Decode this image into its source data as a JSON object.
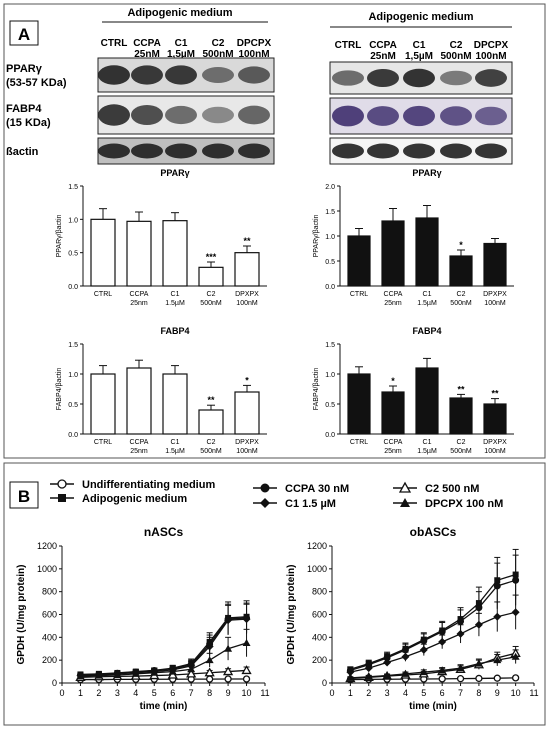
{
  "panels": {
    "a_label": "A",
    "b_label": "B"
  },
  "panel_a": {
    "blot_left": {
      "header": "Adipogenic medium",
      "lanes": [
        [
          "CTRL",
          ""
        ],
        [
          "CCPA",
          "25nM"
        ],
        [
          "C1",
          "1,5µM"
        ],
        [
          "C2",
          "500nM"
        ],
        [
          "DPCPX",
          "100nM"
        ]
      ],
      "row_labels": [
        [
          "PPARγ",
          "(53-57 KDa)"
        ],
        [
          "FABP4",
          "(15 KDa)"
        ],
        [
          "ßactin",
          ""
        ]
      ]
    },
    "blot_right": {
      "header": "Adipogenic medium",
      "lanes": [
        [
          "CTRL",
          ""
        ],
        [
          "CCPA",
          "25nM"
        ],
        [
          "C1",
          "1,5µM"
        ],
        [
          "C2",
          "500nM"
        ],
        [
          "DPCPX",
          "100nM"
        ]
      ]
    }
  },
  "chart_data": [
    {
      "id": "left-ppar",
      "type": "bar",
      "title": "PPARγ",
      "ylabel": "PPARγ/βactin",
      "ylim": [
        0,
        1.5
      ],
      "yticks": [
        "0.0",
        "0.5",
        "1.0",
        "1.5"
      ],
      "categories": [
        [
          "CTRL",
          ""
        ],
        [
          "CCPA",
          "25nm"
        ],
        [
          "C1",
          "1.5µM"
        ],
        [
          "C2",
          "500nM"
        ],
        [
          "DPXPX",
          "100nM"
        ]
      ],
      "values": [
        1.0,
        0.97,
        0.98,
        0.28,
        0.5
      ],
      "errors": [
        0.16,
        0.14,
        0.12,
        0.08,
        0.1
      ],
      "annotations": [
        "",
        "",
        "",
        "***",
        "**"
      ],
      "fill": "#ffffff"
    },
    {
      "id": "right-ppar",
      "type": "bar",
      "title": "PPARγ",
      "ylabel": "PPARγ/βactin",
      "ylim": [
        0,
        2.0
      ],
      "yticks": [
        "0.0",
        "0.5",
        "1.0",
        "1.5",
        "2.0"
      ],
      "categories": [
        [
          "CTRL",
          ""
        ],
        [
          "CCPA",
          "25nm"
        ],
        [
          "C1",
          "1.5µM"
        ],
        [
          "C2",
          "500nM"
        ],
        [
          "DPXPX",
          "100nM"
        ]
      ],
      "values": [
        1.0,
        1.3,
        1.36,
        0.6,
        0.85
      ],
      "errors": [
        0.15,
        0.25,
        0.25,
        0.12,
        0.1
      ],
      "annotations": [
        "",
        "",
        "",
        "*",
        ""
      ],
      "fill": "#111111"
    },
    {
      "id": "left-fabp4",
      "type": "bar",
      "title": "FABP4",
      "ylabel": "FABP4/βactin",
      "ylim": [
        0,
        1.5
      ],
      "yticks": [
        "0.0",
        "0.5",
        "1.0",
        "1.5"
      ],
      "categories": [
        [
          "CTRL",
          ""
        ],
        [
          "CCPA",
          "25nm"
        ],
        [
          "C1",
          "1.5µM"
        ],
        [
          "C2",
          "500nM"
        ],
        [
          "DPXPX",
          "100nM"
        ]
      ],
      "values": [
        1.0,
        1.1,
        1.0,
        0.4,
        0.7
      ],
      "errors": [
        0.14,
        0.13,
        0.14,
        0.08,
        0.11
      ],
      "annotations": [
        "",
        "",
        "",
        "**",
        "*"
      ],
      "fill": "#ffffff"
    },
    {
      "id": "right-fabp4",
      "type": "bar",
      "title": "FABP4",
      "ylabel": "FABP4/βactin",
      "ylim": [
        0,
        1.5
      ],
      "yticks": [
        "0.0",
        "0.5",
        "1.0",
        "1.5"
      ],
      "categories": [
        [
          "CTRL",
          ""
        ],
        [
          "CCPA",
          "25nm"
        ],
        [
          "C1",
          "1.5µM"
        ],
        [
          "C2",
          "500nM"
        ],
        [
          "DPXPX",
          "100nM"
        ]
      ],
      "values": [
        1.0,
        0.7,
        1.1,
        0.6,
        0.5
      ],
      "errors": [
        0.12,
        0.1,
        0.16,
        0.06,
        0.09
      ],
      "annotations": [
        "",
        "*",
        "",
        "**",
        "**"
      ],
      "fill": "#111111"
    },
    {
      "id": "nascs",
      "type": "line",
      "title": "nASCs",
      "xlabel": "time (min)",
      "ylabel": "GPDH (U/mg protein)",
      "xlim": [
        0,
        11
      ],
      "ylim": [
        0,
        1200
      ],
      "xticks": [
        0,
        1,
        2,
        3,
        4,
        5,
        6,
        7,
        8,
        9,
        10,
        11
      ],
      "yticks": [
        0,
        200,
        400,
        600,
        800,
        1000,
        1200
      ],
      "x": [
        1,
        2,
        3,
        4,
        5,
        6,
        7,
        8,
        9,
        10
      ],
      "series": [
        {
          "name": "Undifferentiating medium",
          "marker": "circle-open",
          "values": [
            30,
            30,
            32,
            32,
            33,
            33,
            34,
            34,
            35,
            35
          ],
          "errors": [
            8,
            8,
            8,
            8,
            8,
            8,
            8,
            8,
            8,
            8
          ]
        },
        {
          "name": "Adipogenic medium",
          "marker": "square",
          "values": [
            75,
            80,
            88,
            100,
            110,
            130,
            170,
            360,
            570,
            580
          ],
          "errors": [
            15,
            15,
            15,
            18,
            20,
            25,
            40,
            80,
            140,
            140
          ]
        },
        {
          "name": "CCPA 30 nM",
          "marker": "circle",
          "values": [
            70,
            75,
            85,
            95,
            110,
            125,
            160,
            340,
            560,
            570
          ],
          "errors": [
            15,
            15,
            15,
            18,
            20,
            25,
            40,
            80,
            130,
            130
          ]
        },
        {
          "name": "C1 1.5 µM",
          "marker": "diamond",
          "values": [
            65,
            70,
            80,
            90,
            100,
            115,
            150,
            320,
            550,
            560
          ],
          "errors": [
            15,
            15,
            15,
            18,
            20,
            25,
            40,
            80,
            130,
            130
          ]
        },
        {
          "name": "C2 500 nM",
          "marker": "triangle-open",
          "values": [
            50,
            55,
            58,
            60,
            65,
            70,
            80,
            90,
            100,
            110
          ],
          "errors": [
            12,
            12,
            12,
            12,
            12,
            15,
            18,
            20,
            25,
            30
          ]
        },
        {
          "name": "DPCPX 100 nM",
          "marker": "triangle",
          "values": [
            60,
            65,
            70,
            80,
            90,
            100,
            120,
            200,
            300,
            350
          ],
          "errors": [
            12,
            12,
            15,
            15,
            18,
            22,
            30,
            60,
            100,
            120
          ]
        }
      ]
    },
    {
      "id": "obascs",
      "type": "line",
      "title": "obASCs",
      "xlabel": "time (min)",
      "ylabel": "GPDH (U/mg protein)",
      "xlim": [
        0,
        11
      ],
      "ylim": [
        0,
        1200
      ],
      "xticks": [
        0,
        1,
        2,
        3,
        4,
        5,
        6,
        7,
        8,
        9,
        10,
        11
      ],
      "yticks": [
        0,
        200,
        400,
        600,
        800,
        1000,
        1200
      ],
      "x": [
        1,
        2,
        3,
        4,
        5,
        6,
        7,
        8,
        9,
        10
      ],
      "series": [
        {
          "name": "Undifferentiating medium",
          "marker": "circle-open",
          "values": [
            30,
            32,
            33,
            34,
            35,
            36,
            38,
            40,
            42,
            45
          ],
          "errors": [
            10,
            10,
            10,
            10,
            10,
            10,
            10,
            12,
            12,
            12
          ]
        },
        {
          "name": "Adipogenic medium",
          "marker": "square",
          "values": [
            120,
            170,
            230,
            300,
            380,
            460,
            560,
            700,
            900,
            950
          ],
          "errors": [
            20,
            30,
            40,
            50,
            60,
            80,
            100,
            140,
            200,
            220
          ]
        },
        {
          "name": "CCPA 30 nM",
          "marker": "circle",
          "values": [
            110,
            160,
            220,
            290,
            370,
            450,
            540,
            660,
            850,
            900
          ],
          "errors": [
            20,
            30,
            40,
            50,
            60,
            80,
            100,
            140,
            200,
            220
          ]
        },
        {
          "name": "C1 1.5 µM",
          "marker": "diamond",
          "values": [
            95,
            130,
            180,
            230,
            290,
            360,
            430,
            510,
            580,
            620
          ],
          "errors": [
            20,
            25,
            30,
            40,
            50,
            60,
            80,
            100,
            130,
            150
          ]
        },
        {
          "name": "C2 500 nM",
          "marker": "triangle-open",
          "values": [
            40,
            50,
            60,
            70,
            80,
            100,
            120,
            160,
            220,
            260
          ],
          "errors": [
            10,
            12,
            14,
            16,
            20,
            25,
            30,
            40,
            50,
            60
          ]
        },
        {
          "name": "DPCPX 100 nM",
          "marker": "triangle",
          "values": [
            45,
            55,
            65,
            80,
            95,
            110,
            130,
            170,
            200,
            230
          ],
          "errors": [
            10,
            12,
            14,
            16,
            20,
            25,
            30,
            40,
            50,
            60
          ]
        }
      ]
    }
  ],
  "legend": {
    "entries": [
      {
        "label": "Undifferentiating medium",
        "marker": "circle-open"
      },
      {
        "label": "Adipogenic medium",
        "marker": "square"
      },
      {
        "label": "CCPA 30 nM",
        "marker": "circle"
      },
      {
        "label": "C1 1.5 µM",
        "marker": "diamond"
      },
      {
        "label": "C2 500 nM",
        "marker": "triangle-open"
      },
      {
        "label": "DPCPX 100 nM",
        "marker": "triangle"
      }
    ]
  }
}
